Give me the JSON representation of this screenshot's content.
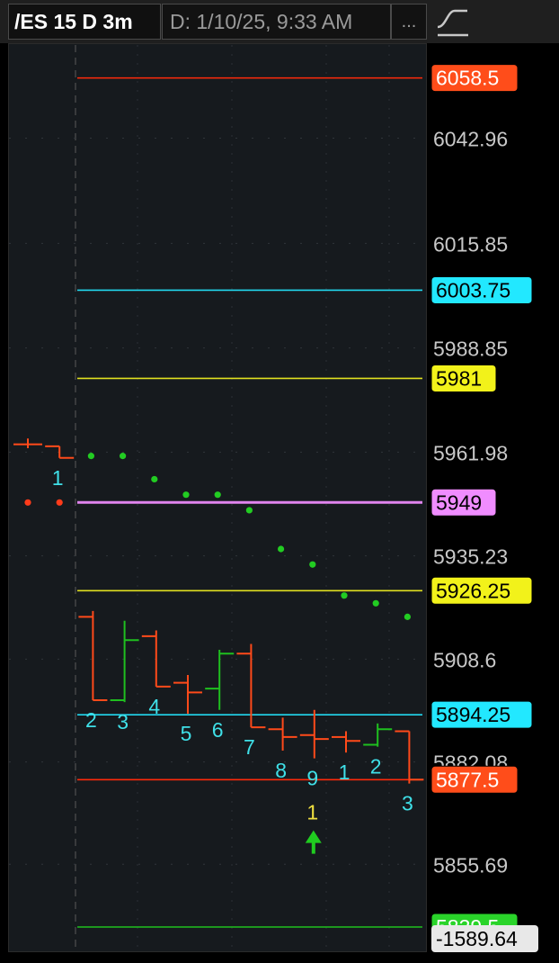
{
  "header": {
    "symbol": "/ES 15 D 3m",
    "date_field": "D: 1/10/25, 9:33 AM",
    "more": "...",
    "study_icon": "curve-icon"
  },
  "colors": {
    "background": "#161a1e",
    "down_bar": "#ff4a1a",
    "up_bar": "#1fbf1f",
    "count_label": "#3fe0e8",
    "signal_label": "#f0e040",
    "signal_arrow": "#20cc20",
    "dots_green": "#22cc22",
    "dots_red": "#ff3b1a"
  },
  "chart_data": {
    "type": "bar",
    "y_ticks": [
      "6042.96",
      "6015.85",
      "5988.85",
      "5961.98",
      "5935.23",
      "5908.6",
      "5882.08",
      "5855.69"
    ],
    "ylim": [
      5833,
      6067
    ],
    "grid": true,
    "levels": [
      {
        "label": "6058.5",
        "value": 6058.5,
        "color": "#ff2a0a",
        "box_bg": "#ff4d1a",
        "box_fg": "#ffffff"
      },
      {
        "label": "6003.75",
        "value": 6003.75,
        "color": "#22d8f0",
        "box_bg": "#22e8ff",
        "box_fg": "#000000"
      },
      {
        "label": "5981",
        "value": 5981,
        "color": "#e0e020",
        "box_bg": "#f2f21a",
        "box_fg": "#000000"
      },
      {
        "label": "5949",
        "value": 5949,
        "color": "#e084ee",
        "box_bg": "#f08cff",
        "box_fg": "#000000"
      },
      {
        "label": "5926.25",
        "value": 5926.25,
        "color": "#e0e020",
        "box_bg": "#f2f21a",
        "box_fg": "#000000"
      },
      {
        "label": "5894.25",
        "value": 5894.25,
        "color": "#22d8f0",
        "box_bg": "#22e8ff",
        "box_fg": "#000000"
      },
      {
        "label": "5877.5",
        "value": 5877.5,
        "color": "#ff2a0a",
        "box_bg": "#ff4d1a",
        "box_fg": "#ffffff"
      },
      {
        "label": "5839.5",
        "value": 5839.5,
        "color": "#1fbf1f",
        "box_bg": "#2ad42a",
        "box_fg": "#ffffff"
      }
    ],
    "bottom_readout": "-1589.64",
    "bars": [
      {
        "open": 5964.0,
        "high": 5965.5,
        "low": 5963.0,
        "close": 5964.0,
        "dir": "down",
        "count": ""
      },
      {
        "open": 5963.5,
        "high": 5963.5,
        "low": 5960.5,
        "close": 5960.5,
        "dir": "down",
        "count": "1"
      },
      {
        "open": 5919.5,
        "high": 5921.0,
        "low": 5898.0,
        "close": 5898.0,
        "dir": "down",
        "count": "2"
      },
      {
        "open": 5898.0,
        "high": 5918.5,
        "low": 5897.5,
        "close": 5913.5,
        "dir": "up",
        "count": "3"
      },
      {
        "open": 5914.5,
        "high": 5916.0,
        "low": 5901.5,
        "close": 5901.5,
        "dir": "down",
        "count": "4"
      },
      {
        "open": 5902.5,
        "high": 5904.5,
        "low": 5894.5,
        "close": 5900.0,
        "dir": "down",
        "count": "5"
      },
      {
        "open": 5901.0,
        "high": 5911.0,
        "low": 5895.5,
        "close": 5910.0,
        "dir": "up",
        "count": "6"
      },
      {
        "open": 5910.0,
        "high": 5912.5,
        "low": 5891.0,
        "close": 5891.0,
        "dir": "down",
        "count": "7"
      },
      {
        "open": 5890.5,
        "high": 5893.5,
        "low": 5885.0,
        "close": 5888.5,
        "dir": "down",
        "count": "8"
      },
      {
        "open": 5889.0,
        "high": 5895.5,
        "low": 5883.0,
        "close": 5888.0,
        "dir": "down",
        "count": "9"
      },
      {
        "open": 5888.5,
        "high": 5890.0,
        "low": 5884.5,
        "close": 5887.5,
        "dir": "down",
        "count": "1"
      },
      {
        "open": 5886.5,
        "high": 5892.0,
        "low": 5886.0,
        "close": 5890.5,
        "dir": "up",
        "count": "2"
      },
      {
        "open": 5890.0,
        "high": 5890.0,
        "low": 5876.5,
        "close": 5877.5,
        "dir": "down",
        "count": "3"
      }
    ],
    "signal": {
      "bar_index": 9,
      "label": "1"
    },
    "dots": [
      {
        "bar_index": 0,
        "value": 5949.0,
        "color": "red"
      },
      {
        "bar_index": 1,
        "value": 5949.0,
        "color": "red"
      },
      {
        "bar_index": 2,
        "value": 5961.0,
        "color": "green"
      },
      {
        "bar_index": 3,
        "value": 5961.0,
        "color": "green"
      },
      {
        "bar_index": 4,
        "value": 5955.0,
        "color": "green"
      },
      {
        "bar_index": 5,
        "value": 5951.0,
        "color": "green"
      },
      {
        "bar_index": 6,
        "value": 5951.0,
        "color": "green"
      },
      {
        "bar_index": 7,
        "value": 5947.0,
        "color": "green"
      },
      {
        "bar_index": 8,
        "value": 5937.0,
        "color": "green"
      },
      {
        "bar_index": 9,
        "value": 5933.0,
        "color": "green"
      },
      {
        "bar_index": 10,
        "value": 5925.0,
        "color": "green"
      },
      {
        "bar_index": 11,
        "value": 5923.0,
        "color": "green"
      },
      {
        "bar_index": 12,
        "value": 5919.5,
        "color": "green"
      }
    ]
  }
}
